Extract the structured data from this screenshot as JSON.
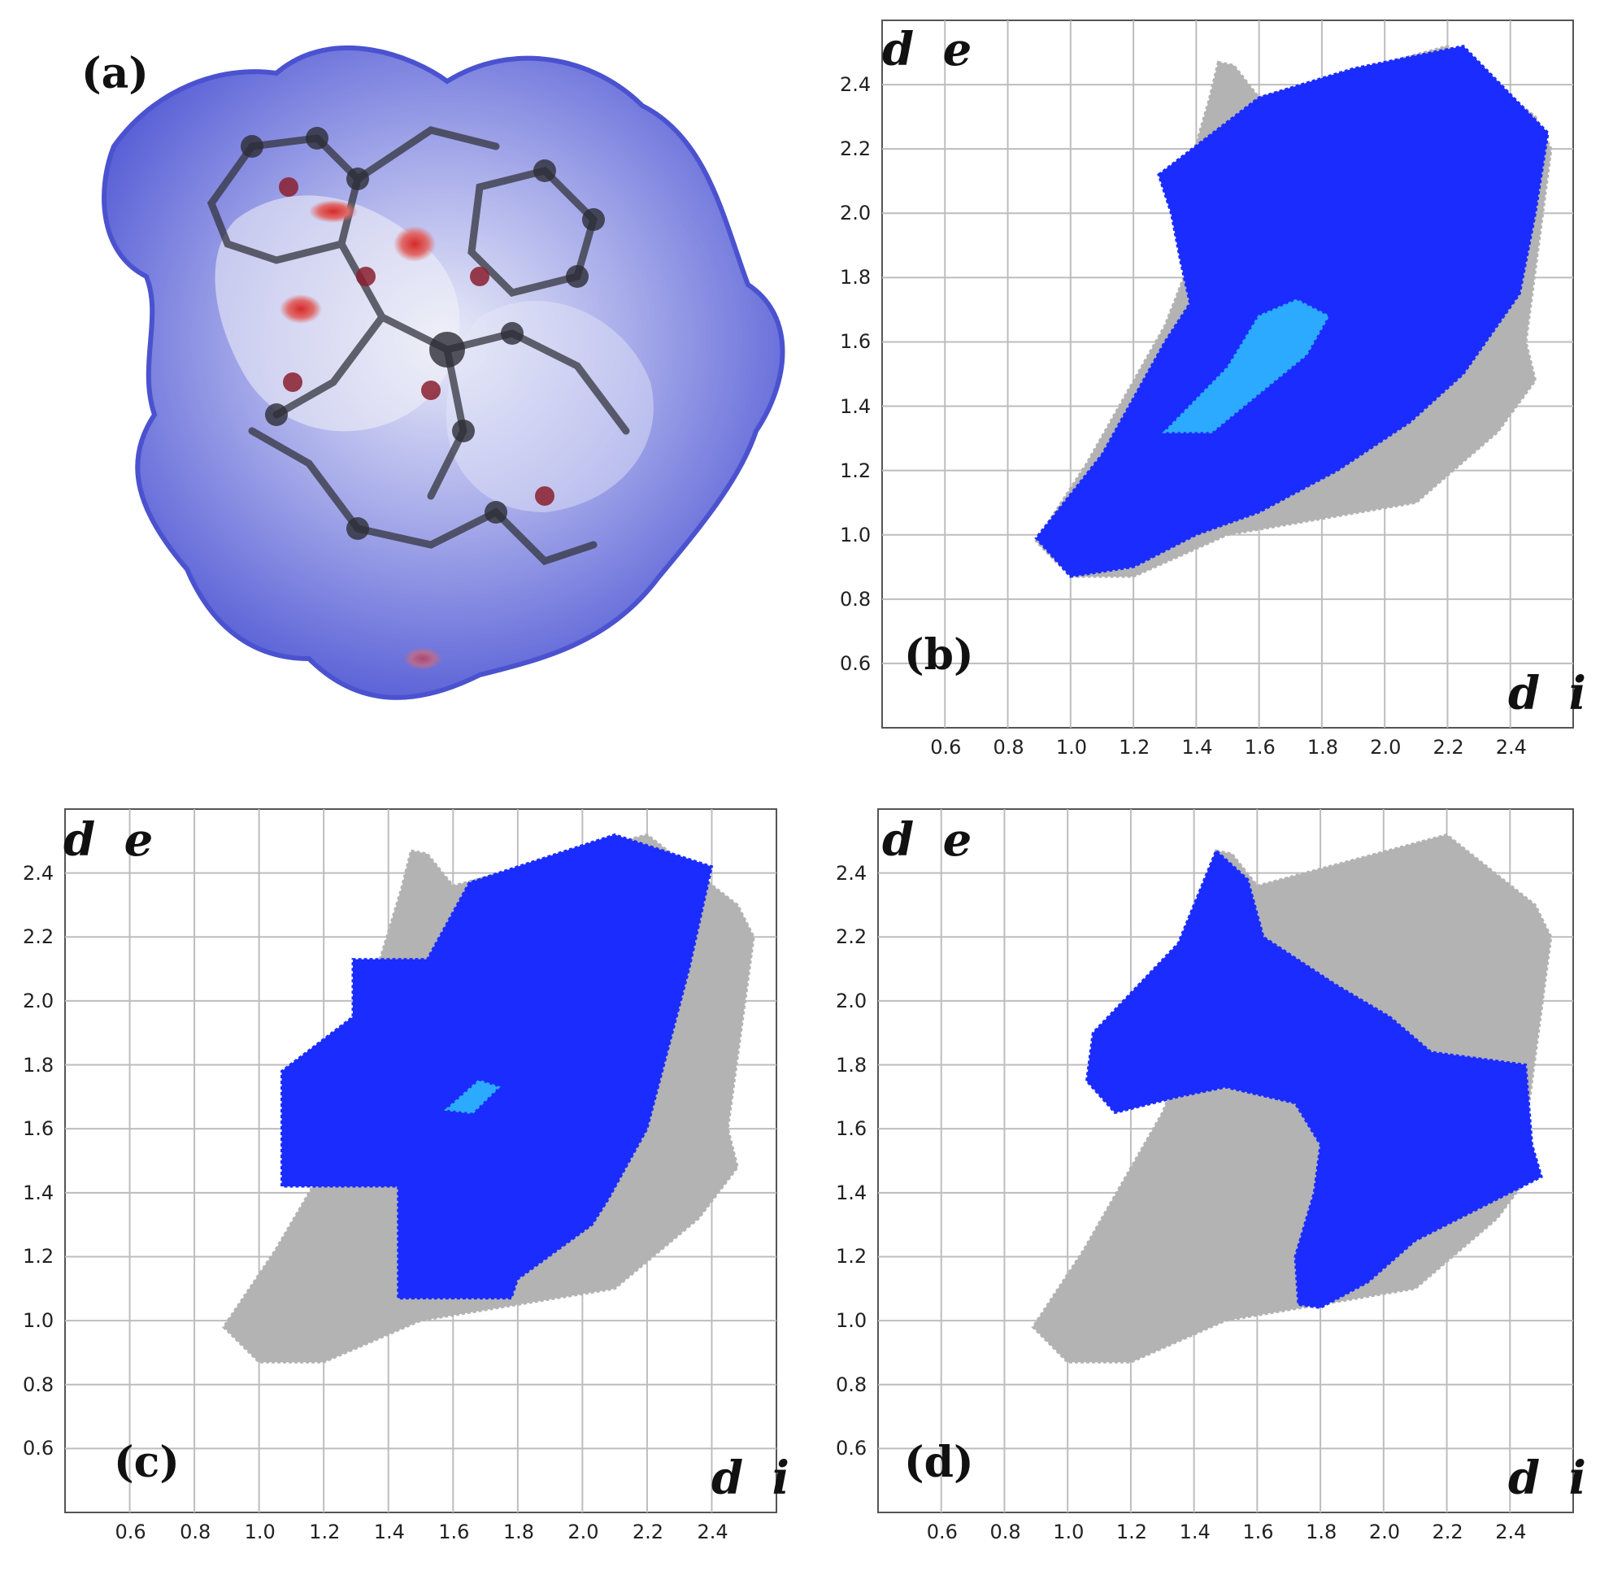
{
  "panels": {
    "a": {
      "label": "(a)"
    },
    "b": {
      "label": "(b)"
    },
    "c": {
      "label": "(c)"
    },
    "d": {
      "label": "(d)"
    }
  },
  "colors": {
    "surface_blue": "#6c73d6",
    "hotspot_red": "#d62a2a",
    "points_blue": "#1a2cff",
    "points_cyan": "#35e0ff",
    "points_gray": "#b3b3b3",
    "grid": "#bdbdbd"
  },
  "chart_data": [
    {
      "panel": "b",
      "type": "scatter",
      "xlabel": "d i",
      "ylabel": "d e",
      "xlim": [
        0.4,
        2.6
      ],
      "ylim": [
        0.4,
        2.6
      ],
      "x_ticks": [
        "0.6",
        "0.8",
        "1.0",
        "1.2",
        "1.4",
        "1.6",
        "1.8",
        "2.0",
        "2.2",
        "2.4"
      ],
      "y_ticks": [
        "0.6",
        "0.8",
        "1.0",
        "1.2",
        "1.4",
        "1.6",
        "1.8",
        "2.0",
        "2.2",
        "2.4"
      ],
      "grid": true,
      "series": [
        {
          "color": "gray",
          "outline": [
            [
              1.47,
              2.47
            ],
            [
              1.52,
              2.46
            ],
            [
              1.6,
              2.36
            ],
            [
              2.2,
              2.52
            ],
            [
              2.48,
              2.3
            ],
            [
              2.53,
              2.2
            ],
            [
              2.45,
              1.6
            ],
            [
              2.48,
              1.48
            ],
            [
              2.36,
              1.32
            ],
            [
              2.1,
              1.1
            ],
            [
              1.8,
              1.05
            ],
            [
              1.5,
              1.0
            ],
            [
              1.2,
              0.87
            ],
            [
              1.0,
              0.87
            ],
            [
              0.89,
              0.98
            ],
            [
              1.05,
              1.22
            ],
            [
              1.3,
              1.65
            ],
            [
              1.38,
              1.85
            ],
            [
              1.35,
              2.05
            ],
            [
              1.44,
              2.35
            ]
          ]
        },
        {
          "color": "blue",
          "outline": [
            [
              1.28,
              2.12
            ],
            [
              1.6,
              2.36
            ],
            [
              1.9,
              2.45
            ],
            [
              2.25,
              2.52
            ],
            [
              2.52,
              2.25
            ],
            [
              2.48,
              2.0
            ],
            [
              2.43,
              1.75
            ],
            [
              2.25,
              1.5
            ],
            [
              2.08,
              1.35
            ],
            [
              1.85,
              1.2
            ],
            [
              1.6,
              1.07
            ],
            [
              1.4,
              1.0
            ],
            [
              1.2,
              0.9
            ],
            [
              1.0,
              0.87
            ],
            [
              0.89,
              0.99
            ],
            [
              1.1,
              1.25
            ],
            [
              1.3,
              1.6
            ],
            [
              1.38,
              1.72
            ],
            [
              1.35,
              1.85
            ],
            [
              1.32,
              2.0
            ]
          ]
        },
        {
          "color": "cyan",
          "outline": [
            [
              1.3,
              1.32
            ],
            [
              1.5,
              1.52
            ],
            [
              1.6,
              1.68
            ],
            [
              1.72,
              1.73
            ],
            [
              1.82,
              1.68
            ],
            [
              1.75,
              1.56
            ],
            [
              1.6,
              1.44
            ],
            [
              1.45,
              1.32
            ]
          ]
        }
      ]
    },
    {
      "panel": "c",
      "type": "scatter",
      "xlabel": "d i",
      "ylabel": "d e",
      "xlim": [
        0.4,
        2.6
      ],
      "ylim": [
        0.4,
        2.6
      ],
      "x_ticks": [
        "0.6",
        "0.8",
        "1.0",
        "1.2",
        "1.4",
        "1.6",
        "1.8",
        "2.0",
        "2.2",
        "2.4"
      ],
      "y_ticks": [
        "0.6",
        "0.8",
        "1.0",
        "1.2",
        "1.4",
        "1.6",
        "1.8",
        "2.0",
        "2.2",
        "2.4"
      ],
      "grid": true,
      "series": [
        {
          "color": "gray",
          "outline": [
            [
              1.47,
              2.47
            ],
            [
              1.52,
              2.46
            ],
            [
              1.6,
              2.36
            ],
            [
              2.2,
              2.52
            ],
            [
              2.48,
              2.3
            ],
            [
              2.53,
              2.2
            ],
            [
              2.45,
              1.6
            ],
            [
              2.48,
              1.48
            ],
            [
              2.36,
              1.32
            ],
            [
              2.1,
              1.1
            ],
            [
              1.8,
              1.05
            ],
            [
              1.5,
              1.0
            ],
            [
              1.2,
              0.87
            ],
            [
              1.0,
              0.87
            ],
            [
              0.89,
              0.98
            ],
            [
              1.05,
              1.22
            ],
            [
              1.3,
              1.65
            ],
            [
              1.38,
              1.85
            ],
            [
              1.35,
              2.05
            ],
            [
              1.44,
              2.35
            ]
          ]
        },
        {
          "color": "blue",
          "outline": [
            [
              1.07,
              1.42
            ],
            [
              1.07,
              1.78
            ],
            [
              1.29,
              1.95
            ],
            [
              1.29,
              2.13
            ],
            [
              1.52,
              2.13
            ],
            [
              1.65,
              2.37
            ],
            [
              2.1,
              2.52
            ],
            [
              2.4,
              2.42
            ],
            [
              2.33,
              2.1
            ],
            [
              2.2,
              1.6
            ],
            [
              2.08,
              1.38
            ],
            [
              2.03,
              1.3
            ],
            [
              1.8,
              1.13
            ],
            [
              1.78,
              1.07
            ],
            [
              1.43,
              1.07
            ],
            [
              1.43,
              1.42
            ]
          ]
        },
        {
          "color": "cyan",
          "outline": [
            [
              1.58,
              1.66
            ],
            [
              1.68,
              1.75
            ],
            [
              1.74,
              1.73
            ],
            [
              1.66,
              1.65
            ]
          ]
        }
      ]
    },
    {
      "panel": "d",
      "type": "scatter",
      "xlabel": "d i",
      "ylabel": "d e",
      "xlim": [
        0.4,
        2.6
      ],
      "ylim": [
        0.4,
        2.6
      ],
      "x_ticks": [
        "0.6",
        "0.8",
        "1.0",
        "1.2",
        "1.4",
        "1.6",
        "1.8",
        "2.0",
        "2.2",
        "2.4"
      ],
      "y_ticks": [
        "0.6",
        "0.8",
        "1.0",
        "1.2",
        "1.4",
        "1.6",
        "1.8",
        "2.0",
        "2.2",
        "2.4"
      ],
      "grid": true,
      "series": [
        {
          "color": "gray",
          "outline": [
            [
              1.47,
              2.47
            ],
            [
              1.52,
              2.46
            ],
            [
              1.6,
              2.36
            ],
            [
              2.2,
              2.52
            ],
            [
              2.48,
              2.3
            ],
            [
              2.53,
              2.2
            ],
            [
              2.45,
              1.6
            ],
            [
              2.48,
              1.48
            ],
            [
              2.36,
              1.32
            ],
            [
              2.1,
              1.1
            ],
            [
              1.8,
              1.05
            ],
            [
              1.5,
              1.0
            ],
            [
              1.2,
              0.87
            ],
            [
              1.0,
              0.87
            ],
            [
              0.89,
              0.98
            ],
            [
              1.05,
              1.22
            ],
            [
              1.3,
              1.65
            ],
            [
              1.38,
              1.85
            ],
            [
              1.35,
              2.05
            ],
            [
              1.44,
              2.35
            ]
          ]
        },
        {
          "color": "blue",
          "outline": [
            [
              1.06,
              1.75
            ],
            [
              1.08,
              1.9
            ],
            [
              1.35,
              2.18
            ],
            [
              1.47,
              2.47
            ],
            [
              1.57,
              2.38
            ],
            [
              1.62,
              2.2
            ],
            [
              1.85,
              2.05
            ],
            [
              2.02,
              1.95
            ],
            [
              2.15,
              1.84
            ],
            [
              2.45,
              1.8
            ],
            [
              2.47,
              1.55
            ],
            [
              2.5,
              1.45
            ],
            [
              2.3,
              1.35
            ],
            [
              2.1,
              1.25
            ],
            [
              1.95,
              1.12
            ],
            [
              1.8,
              1.04
            ],
            [
              1.73,
              1.05
            ],
            [
              1.72,
              1.2
            ],
            [
              1.78,
              1.4
            ],
            [
              1.8,
              1.55
            ],
            [
              1.72,
              1.68
            ],
            [
              1.5,
              1.73
            ],
            [
              1.35,
              1.7
            ],
            [
              1.15,
              1.65
            ]
          ]
        }
      ]
    }
  ]
}
